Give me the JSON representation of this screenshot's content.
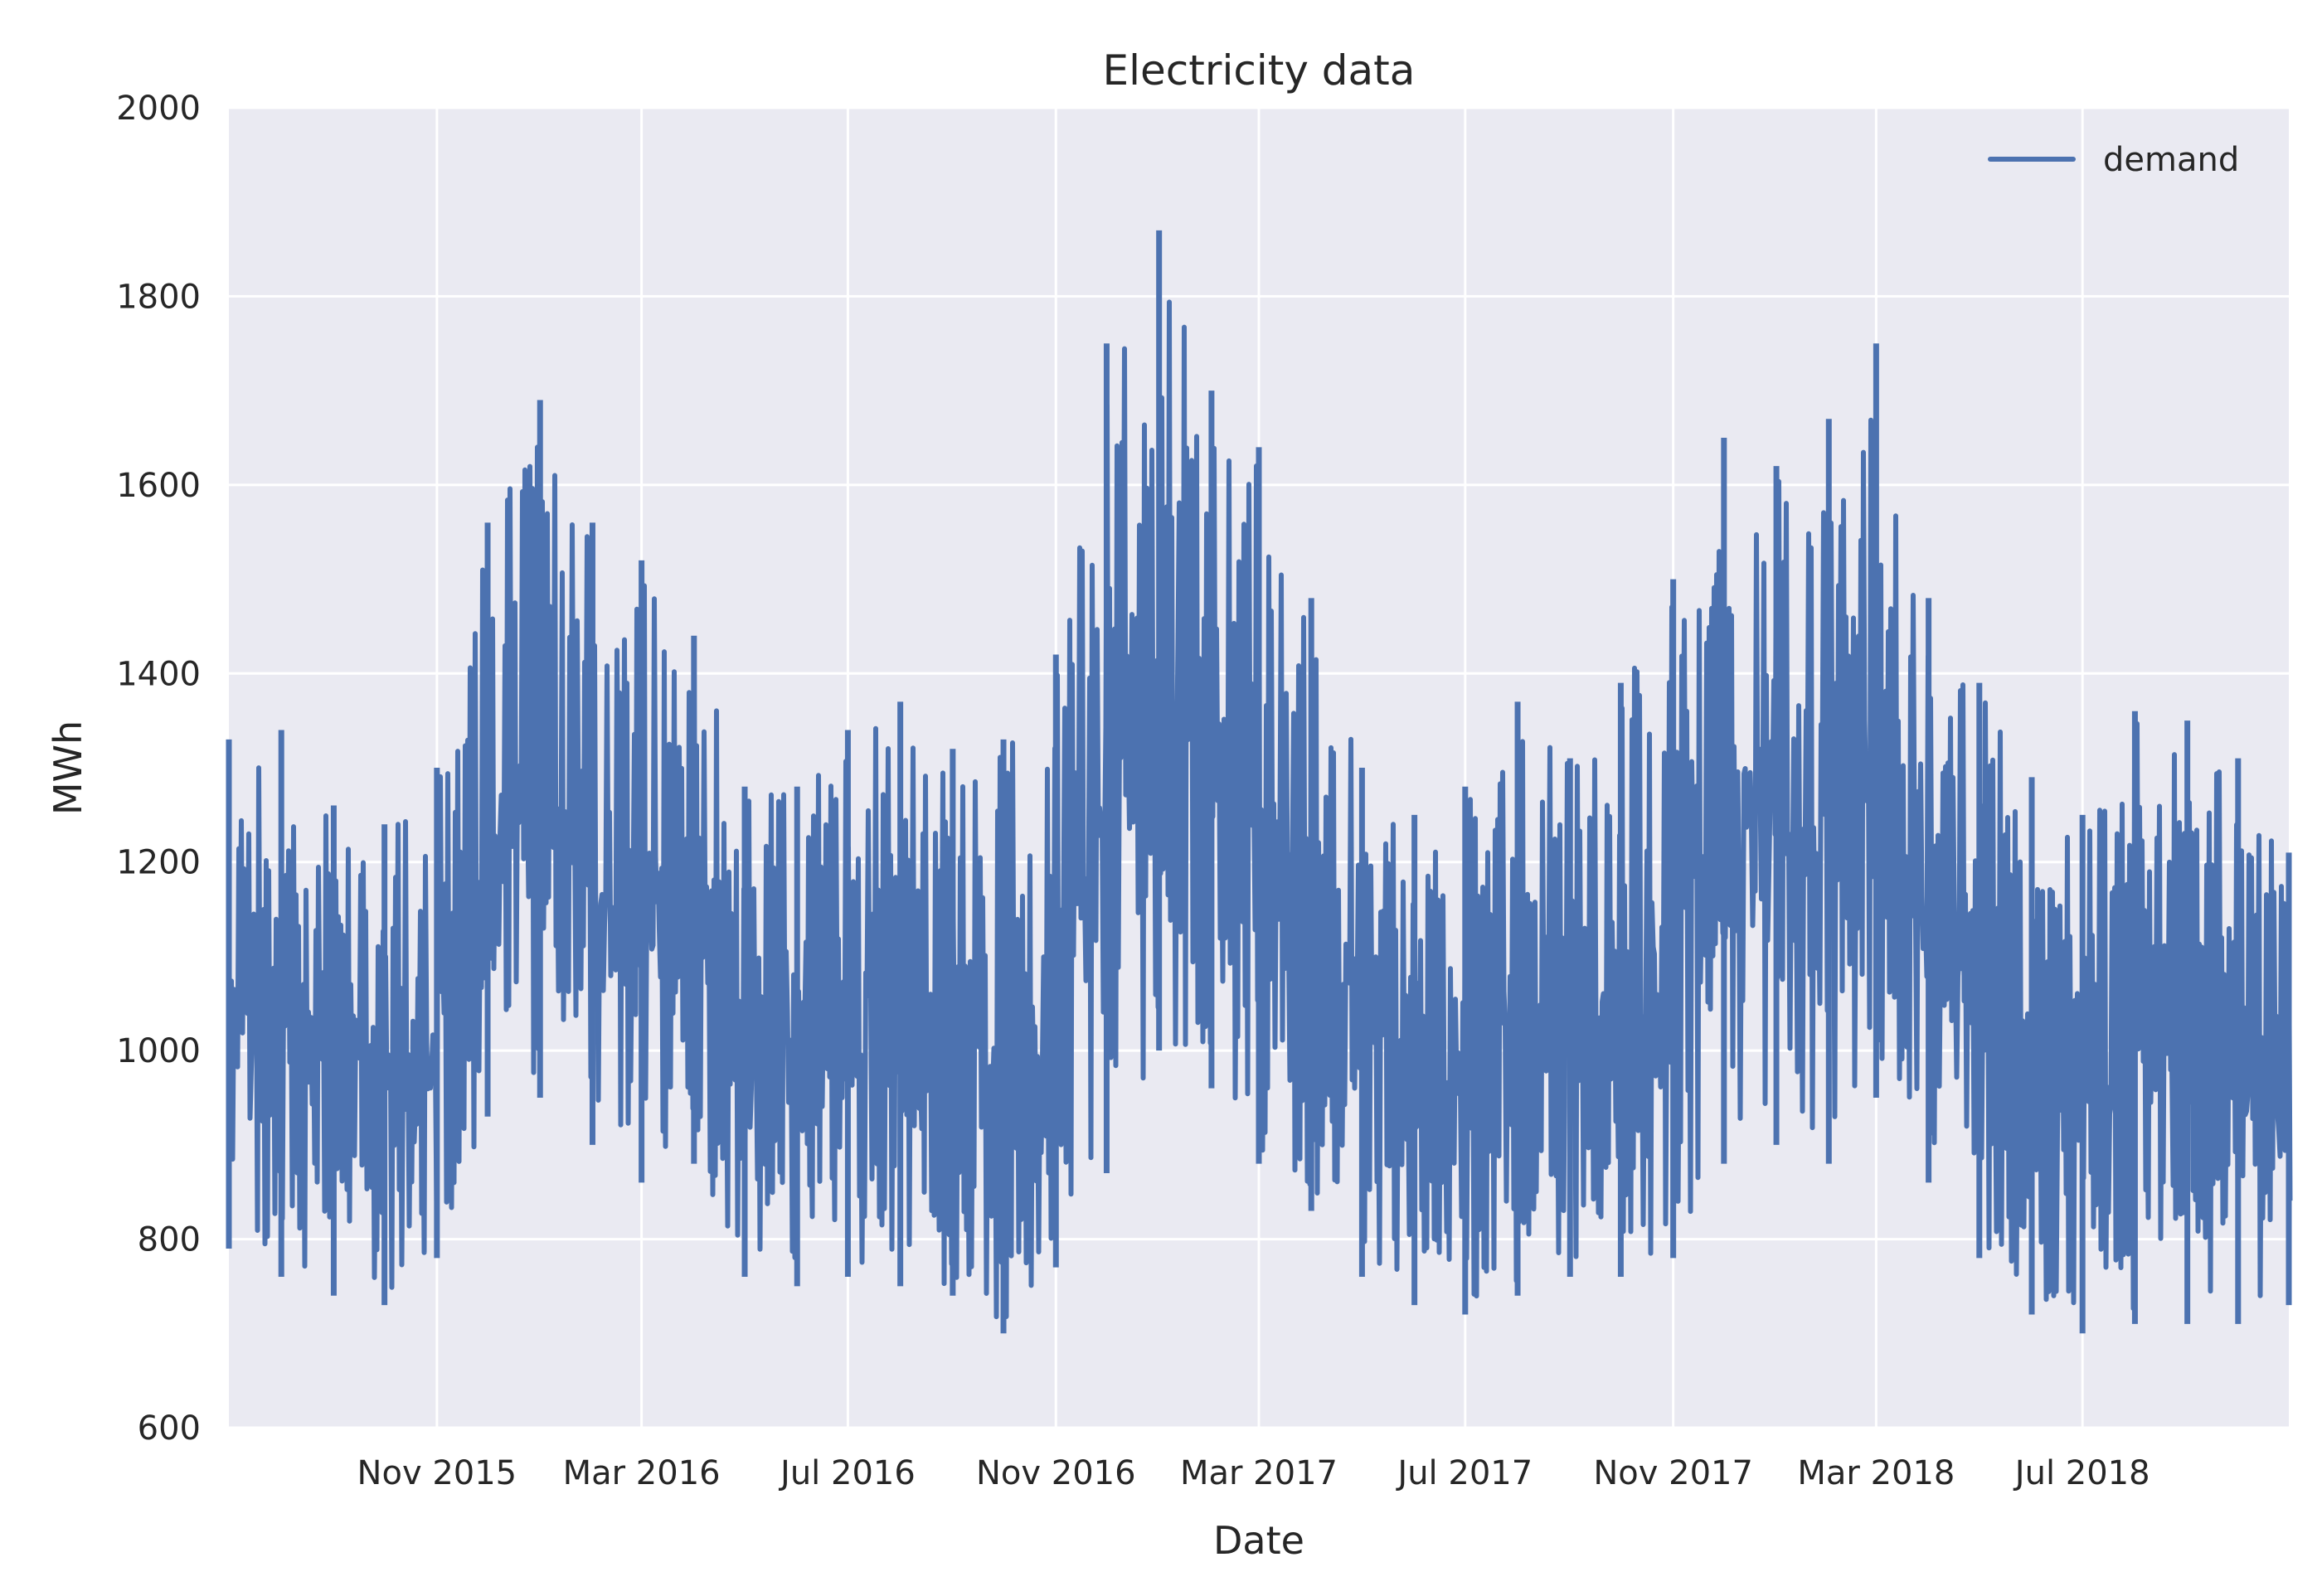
{
  "chart_data": {
    "type": "line",
    "title": "Electricity data",
    "xlabel": "Date",
    "ylabel": "MWh",
    "ylim": [
      600,
      2000
    ],
    "xlim": [
      "2015-07-01",
      "2018-10-31"
    ],
    "grid": true,
    "legend_position": "top-right",
    "y_ticks": [
      600,
      800,
      1000,
      1200,
      1400,
      1600,
      1800,
      2000
    ],
    "x_ticks": [
      {
        "date": "2015-11-01",
        "label": "Nov 2015"
      },
      {
        "date": "2016-03-01",
        "label": "Mar 2016"
      },
      {
        "date": "2016-07-01",
        "label": "Jul 2016"
      },
      {
        "date": "2016-11-01",
        "label": "Nov 2016"
      },
      {
        "date": "2017-03-01",
        "label": "Mar 2017"
      },
      {
        "date": "2017-07-01",
        "label": "Jul 2017"
      },
      {
        "date": "2017-11-01",
        "label": "Nov 2017"
      },
      {
        "date": "2018-03-01",
        "label": "Mar 2018"
      },
      {
        "date": "2018-07-01",
        "label": "Jul 2018"
      }
    ],
    "series": [
      {
        "name": "demand",
        "color": "#4c72b0",
        "envelope": {
          "x": [
            "2015-07-01",
            "2015-08-01",
            "2015-09-01",
            "2015-10-01",
            "2015-11-01",
            "2015-12-01",
            "2016-01-01",
            "2016-02-01",
            "2016-03-01",
            "2016-04-01",
            "2016-05-01",
            "2016-06-01",
            "2016-07-01",
            "2016-08-01",
            "2016-09-01",
            "2016-10-01",
            "2016-11-01",
            "2016-12-01",
            "2017-01-01",
            "2017-02-01",
            "2017-03-01",
            "2017-04-01",
            "2017-05-01",
            "2017-06-01",
            "2017-07-01",
            "2017-08-01",
            "2017-09-01",
            "2017-10-01",
            "2017-11-01",
            "2017-12-01",
            "2018-01-01",
            "2018-02-01",
            "2018-03-01",
            "2018-04-01",
            "2018-05-01",
            "2018-06-01",
            "2018-07-01",
            "2018-08-01",
            "2018-09-01",
            "2018-10-01",
            "2018-10-31"
          ],
          "low": [
            790,
            760,
            740,
            730,
            780,
            930,
            950,
            900,
            860,
            880,
            760,
            750,
            760,
            750,
            740,
            700,
            770,
            870,
            1000,
            960,
            880,
            830,
            760,
            730,
            720,
            740,
            760,
            760,
            780,
            880,
            900,
            880,
            950,
            860,
            780,
            720,
            700,
            710,
            710,
            710,
            730
          ],
          "high": [
            1330,
            1340,
            1260,
            1240,
            1300,
            1560,
            1690,
            1560,
            1520,
            1440,
            1280,
            1280,
            1340,
            1370,
            1320,
            1330,
            1420,
            1750,
            1870,
            1700,
            1640,
            1480,
            1300,
            1250,
            1280,
            1370,
            1310,
            1390,
            1500,
            1650,
            1620,
            1670,
            1750,
            1480,
            1390,
            1290,
            1250,
            1360,
            1350,
            1310,
            1210
          ]
        }
      }
    ]
  }
}
